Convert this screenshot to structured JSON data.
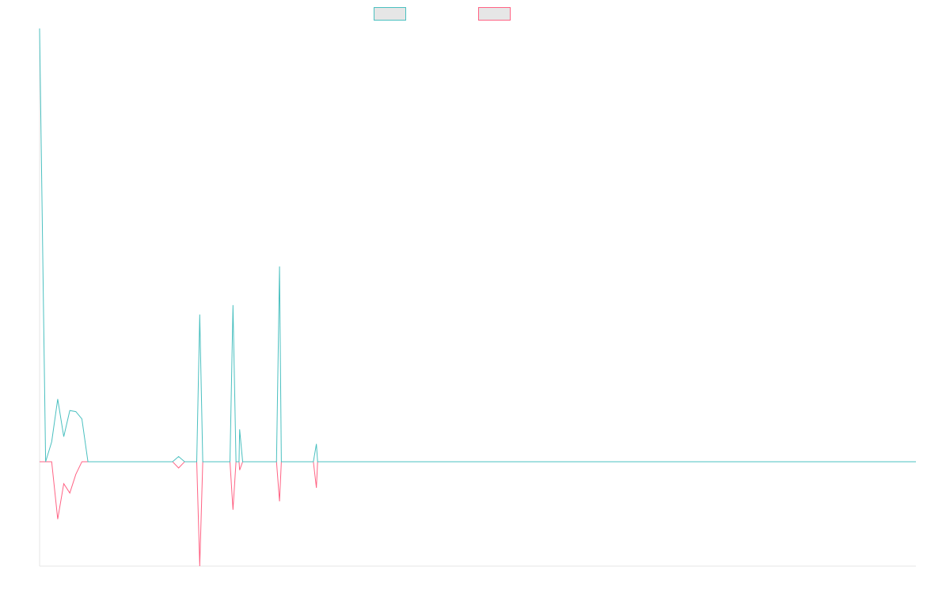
{
  "chart_data": {
    "type": "line",
    "title": "",
    "xlabel": "",
    "ylabel": "",
    "grid": false,
    "legend_position": "top",
    "ylim": [
      -100,
      415
    ],
    "x": [
      0,
      1,
      2,
      3,
      4,
      5,
      6,
      7,
      8,
      9,
      10,
      11,
      12,
      13,
      14,
      15,
      16,
      17,
      18,
      19,
      20,
      21,
      22,
      23,
      24,
      25,
      26,
      27,
      28,
      29,
      30,
      31,
      32,
      33,
      34,
      35,
      36,
      37,
      38,
      39,
      40,
      41,
      42,
      43,
      44,
      45,
      46,
      47,
      48,
      49,
      50,
      51,
      52,
      53,
      54,
      55,
      56,
      57,
      58,
      59,
      60,
      61,
      62,
      63,
      64,
      65,
      66,
      67,
      68,
      69,
      70,
      71,
      72,
      73,
      74,
      75,
      76,
      77,
      78,
      79,
      80,
      81,
      82,
      83,
      84,
      85,
      86,
      87,
      88,
      89,
      90,
      91,
      92,
      93,
      94,
      95,
      96,
      97,
      98,
      99,
      100,
      101,
      102,
      103,
      104,
      105,
      106,
      107,
      108,
      109,
      110,
      111,
      112,
      113,
      114,
      115,
      116,
      117,
      118,
      119,
      120,
      121,
      122,
      123,
      124,
      125,
      126,
      127,
      128,
      129,
      130,
      131,
      132,
      133,
      134,
      135,
      136,
      137,
      138,
      139,
      140,
      141,
      142,
      143,
      144,
      145
    ],
    "series": [
      {
        "color": "#4bc0c0",
        "values": [
          415,
          0,
          19,
          60,
          24,
          49,
          48,
          41,
          0,
          0,
          0,
          0,
          0,
          0,
          0,
          0,
          0,
          0,
          0,
          0,
          0,
          0,
          0,
          5,
          0,
          0,
          0,
          0,
          0,
          0,
          0,
          0,
          0,
          0,
          0,
          0,
          0,
          0,
          0,
          0,
          0,
          0,
          0,
          0,
          0,
          0,
          0,
          0,
          0,
          0,
          0,
          0,
          0,
          0,
          0,
          0,
          0,
          0,
          0,
          0,
          0,
          0,
          0,
          0,
          0,
          0,
          0,
          0,
          0,
          0,
          0,
          0,
          0,
          0,
          0,
          0,
          0,
          0,
          0,
          0,
          0,
          0,
          0,
          0,
          0,
          0,
          0,
          0,
          0,
          0,
          0,
          0,
          0,
          0,
          0,
          0,
          0,
          0,
          0,
          0,
          0,
          0,
          0,
          0,
          0,
          0,
          0,
          0,
          0,
          0,
          0,
          0,
          0,
          0,
          0,
          0,
          0,
          0,
          0,
          0,
          0,
          0,
          0,
          0,
          0,
          0,
          0,
          0,
          0,
          0,
          0,
          0,
          0,
          0,
          0,
          0,
          0,
          0,
          0,
          0,
          0,
          0,
          0,
          0,
          0,
          0
        ]
      },
      {
        "color": "#ff6384",
        "values": [
          0,
          0,
          0,
          -55,
          -21,
          -30,
          -12,
          0,
          0,
          0,
          0,
          0,
          0,
          0,
          0,
          0,
          0,
          0,
          0,
          0,
          0,
          0,
          0,
          -6,
          0,
          0,
          0,
          0,
          0,
          0,
          0,
          0,
          0,
          0,
          0,
          0,
          0,
          0,
          0,
          0,
          0,
          0,
          0,
          0,
          0,
          0,
          0,
          0,
          0,
          0,
          0,
          0,
          0,
          0,
          0,
          0,
          0,
          0,
          0,
          0,
          0,
          0,
          0,
          0,
          0,
          0,
          0,
          0,
          0,
          0,
          0,
          0,
          0,
          0,
          0,
          0,
          0,
          0,
          0,
          0,
          0,
          0,
          0,
          0,
          0,
          0,
          0,
          0,
          0,
          0,
          0,
          0,
          0,
          0,
          0,
          0,
          0,
          0,
          0,
          0,
          0,
          0,
          0,
          0,
          0,
          0,
          0,
          0,
          0,
          0,
          0,
          0,
          0,
          0,
          0,
          0,
          0,
          0,
          0,
          0,
          0,
          0,
          0,
          0,
          0,
          0,
          0,
          0,
          0,
          0,
          0,
          0,
          0,
          0,
          0,
          0,
          0,
          0,
          0,
          0,
          0,
          0,
          0,
          0,
          0,
          0
        ]
      }
    ],
    "spikes": [
      {
        "x": 26.5,
        "pos": 141,
        "neg": -100
      },
      {
        "x": 32.0,
        "pos": 150,
        "neg": -46
      },
      {
        "x": 33.1,
        "pos": 31,
        "neg": -8
      },
      {
        "x": 39.7,
        "pos": 187,
        "neg": -38
      },
      {
        "x": 45.8,
        "pos": 17,
        "neg": -25
      }
    ]
  }
}
